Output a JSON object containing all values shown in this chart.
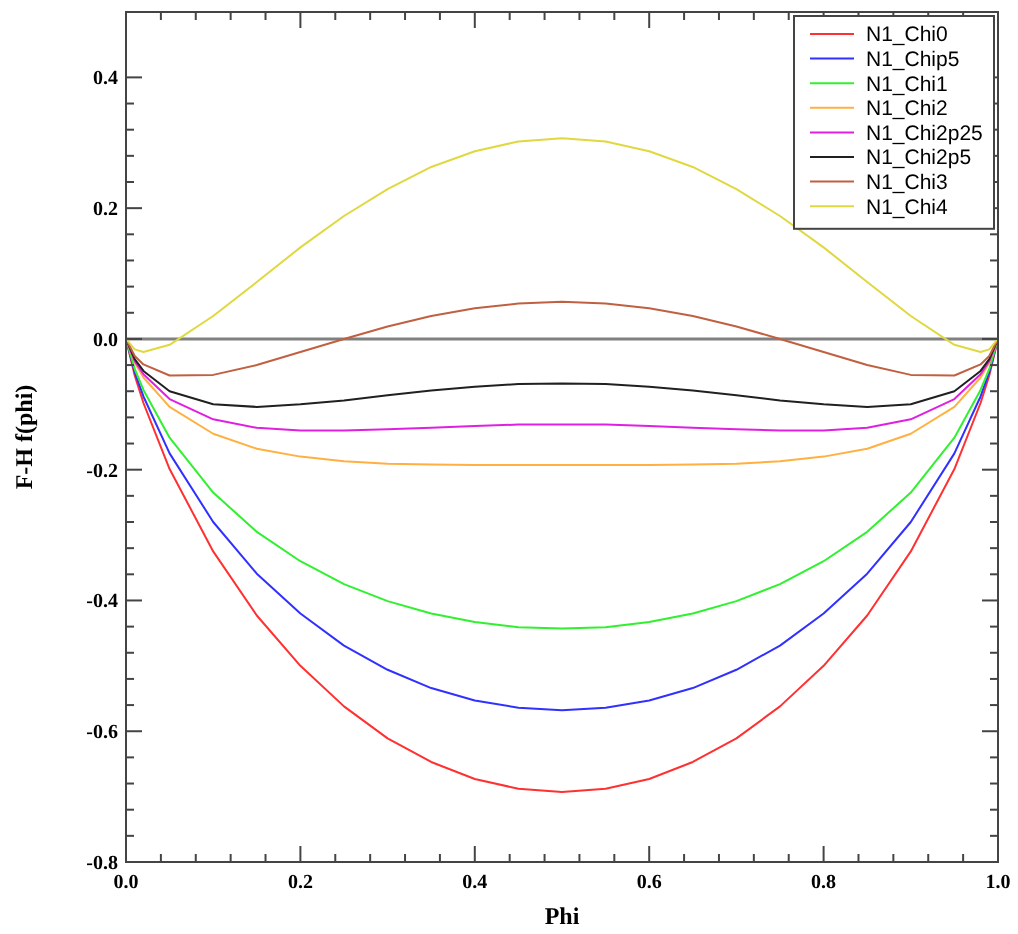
{
  "chart_data": {
    "type": "line",
    "xlabel": "Phi",
    "ylabel": "F-H f(phi)",
    "x": [
      0,
      0.01,
      0.02,
      0.05,
      0.1,
      0.15,
      0.2,
      0.25,
      0.3,
      0.35,
      0.4,
      0.45,
      0.5,
      0.55,
      0.6,
      0.65,
      0.7,
      0.75,
      0.8,
      0.85,
      0.9,
      0.95,
      0.98,
      0.99,
      1
    ],
    "xlim": [
      0,
      1
    ],
    "xticks": [
      {
        "value": 0,
        "label": "0.0"
      },
      {
        "value": 0.2,
        "label": "0.2"
      },
      {
        "value": 0.4,
        "label": "0.4"
      },
      {
        "value": 0.6,
        "label": "0.6"
      },
      {
        "value": 0.8,
        "label": "0.8"
      },
      {
        "value": 1,
        "label": "1.0"
      }
    ],
    "ylim": [
      -0.8,
      0.5
    ],
    "yticks": [
      -0.8,
      -0.6,
      -0.4,
      -0.2,
      {
        "value": 0,
        "label": "0.0"
      },
      0.2,
      0.4
    ],
    "grid": false,
    "legend": "top right",
    "marker": "none",
    "line_style": "solid",
    "ref_lines": [
      {
        "axis": "y",
        "value": 0,
        "color": "#808080"
      }
    ],
    "series": [
      {
        "name": "N1_Chi0",
        "color": "#ff3030",
        "values": [
          0,
          -0.056,
          -0.098,
          -0.199,
          -0.325,
          -0.423,
          -0.5,
          -0.562,
          -0.611,
          -0.647,
          -0.673,
          -0.688,
          -0.693,
          -0.688,
          -0.673,
          -0.647,
          -0.611,
          -0.562,
          -0.5,
          -0.423,
          -0.325,
          -0.199,
          -0.098,
          -0.056,
          0
        ]
      },
      {
        "name": "N1_Chip5",
        "color": "#3030ff",
        "values": [
          0,
          -0.051,
          -0.088,
          -0.175,
          -0.28,
          -0.359,
          -0.42,
          -0.469,
          -0.506,
          -0.534,
          -0.553,
          -0.564,
          -0.568,
          -0.564,
          -0.553,
          -0.534,
          -0.506,
          -0.469,
          -0.42,
          -0.359,
          -0.28,
          -0.175,
          -0.088,
          -0.051,
          0
        ]
      },
      {
        "name": "N1_Chi1",
        "color": "#30f030",
        "values": [
          0,
          -0.046,
          -0.078,
          -0.151,
          -0.235,
          -0.295,
          -0.34,
          -0.375,
          -0.401,
          -0.42,
          -0.433,
          -0.441,
          -0.443,
          -0.441,
          -0.433,
          -0.42,
          -0.401,
          -0.375,
          -0.34,
          -0.295,
          -0.235,
          -0.151,
          -0.078,
          -0.046,
          0
        ]
      },
      {
        "name": "N1_Chi2",
        "color": "#ffb040",
        "values": [
          0,
          -0.036,
          -0.059,
          -0.104,
          -0.145,
          -0.168,
          -0.18,
          -0.187,
          -0.191,
          -0.192,
          -0.193,
          -0.193,
          -0.193,
          -0.193,
          -0.193,
          -0.192,
          -0.191,
          -0.187,
          -0.18,
          -0.168,
          -0.145,
          -0.104,
          -0.059,
          -0.036,
          0
        ]
      },
      {
        "name": "N1_Chi2p25",
        "color": "#e020e0",
        "values": [
          0,
          -0.034,
          -0.054,
          -0.092,
          -0.123,
          -0.136,
          -0.14,
          -0.14,
          -0.138,
          -0.136,
          -0.133,
          -0.131,
          -0.131,
          -0.131,
          -0.133,
          -0.136,
          -0.138,
          -0.14,
          -0.14,
          -0.136,
          -0.123,
          -0.092,
          -0.054,
          -0.034,
          0
        ]
      },
      {
        "name": "N1_Chi2p5",
        "color": "#202020",
        "values": [
          0,
          -0.031,
          -0.049,
          -0.08,
          -0.1,
          -0.104,
          -0.1,
          -0.094,
          -0.086,
          -0.079,
          -0.073,
          -0.069,
          -0.068,
          -0.069,
          -0.073,
          -0.079,
          -0.086,
          -0.094,
          -0.1,
          -0.104,
          -0.1,
          -0.08,
          -0.049,
          -0.031,
          0
        ]
      },
      {
        "name": "N1_Chi3",
        "color": "#c06040",
        "values": [
          0,
          -0.026,
          -0.039,
          -0.056,
          -0.055,
          -0.04,
          -0.02,
          0.0,
          0.019,
          0.035,
          0.047,
          0.054,
          0.057,
          0.054,
          0.047,
          0.035,
          0.019,
          0.0,
          -0.02,
          -0.04,
          -0.055,
          -0.056,
          -0.039,
          -0.026,
          0
        ]
      },
      {
        "name": "N1_Chi4",
        "color": "#e0d840",
        "values": [
          0,
          -0.016,
          -0.02,
          -0.009,
          0.035,
          0.087,
          0.14,
          0.188,
          0.229,
          0.263,
          0.287,
          0.302,
          0.307,
          0.302,
          0.287,
          0.263,
          0.229,
          0.188,
          0.14,
          0.087,
          0.035,
          -0.009,
          -0.02,
          -0.016,
          0
        ]
      }
    ]
  }
}
